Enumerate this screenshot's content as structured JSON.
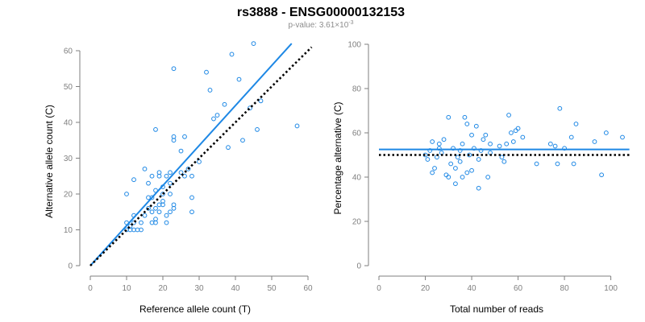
{
  "title": "rs3888 - ENSG00000132153",
  "subtitle": "p-value: 3.61×10",
  "subtitle_exp": "-3",
  "colors": {
    "point": "#1e88e5",
    "fit": "#1e88e5",
    "reference": "#000000",
    "axis": "#7f7f7f"
  },
  "chart_data": [
    {
      "type": "scatter",
      "xlabel": "Reference allele count (T)",
      "ylabel": "Alternative allele count (C)",
      "xlim": [
        0,
        60
      ],
      "ylim": [
        0,
        60
      ],
      "xticks": [
        0,
        10,
        20,
        30,
        40,
        50,
        60
      ],
      "yticks": [
        0,
        10,
        20,
        30,
        40,
        50,
        60
      ],
      "grid": false,
      "lines": [
        {
          "style": "solid",
          "color": "#1e88e5",
          "x": [
            0,
            55.5
          ],
          "y": [
            0,
            62
          ]
        },
        {
          "style": "dotted",
          "color": "#000000",
          "x": [
            0,
            61
          ],
          "y": [
            0,
            61
          ]
        }
      ],
      "points": [
        [
          10,
          10
        ],
        [
          10,
          12
        ],
        [
          11,
          10
        ],
        [
          11,
          11
        ],
        [
          12,
          10
        ],
        [
          12,
          12
        ],
        [
          12,
          14
        ],
        [
          13,
          10
        ],
        [
          14,
          10
        ],
        [
          15,
          14
        ],
        [
          16,
          16
        ],
        [
          17,
          12
        ],
        [
          17,
          15
        ],
        [
          18,
          12
        ],
        [
          18,
          13
        ],
        [
          18,
          16
        ],
        [
          19,
          15
        ],
        [
          19,
          17
        ],
        [
          20,
          17
        ],
        [
          20,
          20
        ],
        [
          21,
          12
        ],
        [
          21,
          14
        ],
        [
          22,
          15
        ],
        [
          22,
          20
        ],
        [
          23,
          16
        ],
        [
          23,
          17
        ],
        [
          15,
          27
        ],
        [
          16,
          23
        ],
        [
          17,
          25
        ],
        [
          18,
          21
        ],
        [
          18,
          38
        ],
        [
          19,
          26
        ],
        [
          20,
          22
        ],
        [
          21,
          25
        ],
        [
          22,
          26
        ],
        [
          23,
          35
        ],
        [
          23,
          36
        ],
        [
          23,
          55
        ],
        [
          25,
          32
        ],
        [
          26,
          36
        ],
        [
          27,
          27
        ],
        [
          28,
          19
        ],
        [
          28,
          25
        ],
        [
          30,
          29
        ],
        [
          32,
          54
        ],
        [
          33,
          49
        ],
        [
          34,
          41
        ],
        [
          35,
          42
        ],
        [
          37,
          45
        ],
        [
          38,
          33
        ],
        [
          39,
          59
        ],
        [
          41,
          52
        ],
        [
          42,
          35
        ],
        [
          44,
          44
        ],
        [
          45,
          62
        ],
        [
          46,
          38
        ],
        [
          47,
          46
        ],
        [
          57,
          39
        ],
        [
          28,
          15
        ],
        [
          10,
          20
        ],
        [
          12,
          24
        ],
        [
          17,
          19
        ],
        [
          19,
          25
        ],
        [
          20,
          18
        ],
        [
          26,
          25
        ],
        [
          22,
          23
        ],
        [
          14,
          12
        ],
        [
          16,
          19
        ],
        [
          25,
          26
        ]
      ]
    },
    {
      "type": "scatter",
      "xlabel": "Total number of reads",
      "ylabel": "Percentage alternative (C)",
      "xlim": [
        0,
        105
      ],
      "ylim": [
        0,
        100
      ],
      "xticks": [
        0,
        20,
        40,
        60,
        80,
        100
      ],
      "yticks": [
        0,
        20,
        40,
        60,
        80,
        100
      ],
      "grid": false,
      "lines": [
        {
          "style": "solid",
          "color": "#1e88e5",
          "x": [
            0,
            108
          ],
          "y": [
            52.5,
            52.5
          ]
        },
        {
          "style": "dotted",
          "color": "#000000",
          "x": [
            0,
            108
          ],
          "y": [
            50,
            50
          ]
        }
      ],
      "points": [
        [
          20,
          50
        ],
        [
          21,
          48
        ],
        [
          22,
          52
        ],
        [
          23,
          42
        ],
        [
          23,
          56
        ],
        [
          24,
          44
        ],
        [
          25,
          49
        ],
        [
          26,
          55
        ],
        [
          27,
          51
        ],
        [
          28,
          57
        ],
        [
          29,
          41
        ],
        [
          30,
          40
        ],
        [
          30,
          67
        ],
        [
          31,
          46
        ],
        [
          32,
          53
        ],
        [
          33,
          44
        ],
        [
          33,
          37
        ],
        [
          34,
          49
        ],
        [
          35,
          47
        ],
        [
          35,
          52
        ],
        [
          36,
          40
        ],
        [
          36,
          55
        ],
        [
          37,
          67
        ],
        [
          38,
          42
        ],
        [
          39,
          50
        ],
        [
          40,
          59
        ],
        [
          40,
          43
        ],
        [
          41,
          53
        ],
        [
          42,
          63
        ],
        [
          43,
          48
        ],
        [
          43,
          35
        ],
        [
          44,
          52
        ],
        [
          45,
          57
        ],
        [
          46,
          59
        ],
        [
          47,
          40
        ],
        [
          48,
          51
        ],
        [
          52,
          54
        ],
        [
          53,
          49
        ],
        [
          54,
          47
        ],
        [
          55,
          55
        ],
        [
          56,
          68
        ],
        [
          57,
          60
        ],
        [
          58,
          56
        ],
        [
          59,
          61
        ],
        [
          60,
          62
        ],
        [
          62,
          58
        ],
        [
          68,
          46
        ],
        [
          74,
          55
        ],
        [
          76,
          54
        ],
        [
          77,
          46
        ],
        [
          78,
          71
        ],
        [
          80,
          53
        ],
        [
          83,
          58
        ],
        [
          84,
          46
        ],
        [
          85,
          64
        ],
        [
          93,
          56
        ],
        [
          96,
          41
        ],
        [
          98,
          60
        ],
        [
          105,
          58
        ],
        [
          38,
          64
        ],
        [
          26,
          53
        ],
        [
          48,
          55
        ]
      ]
    }
  ]
}
